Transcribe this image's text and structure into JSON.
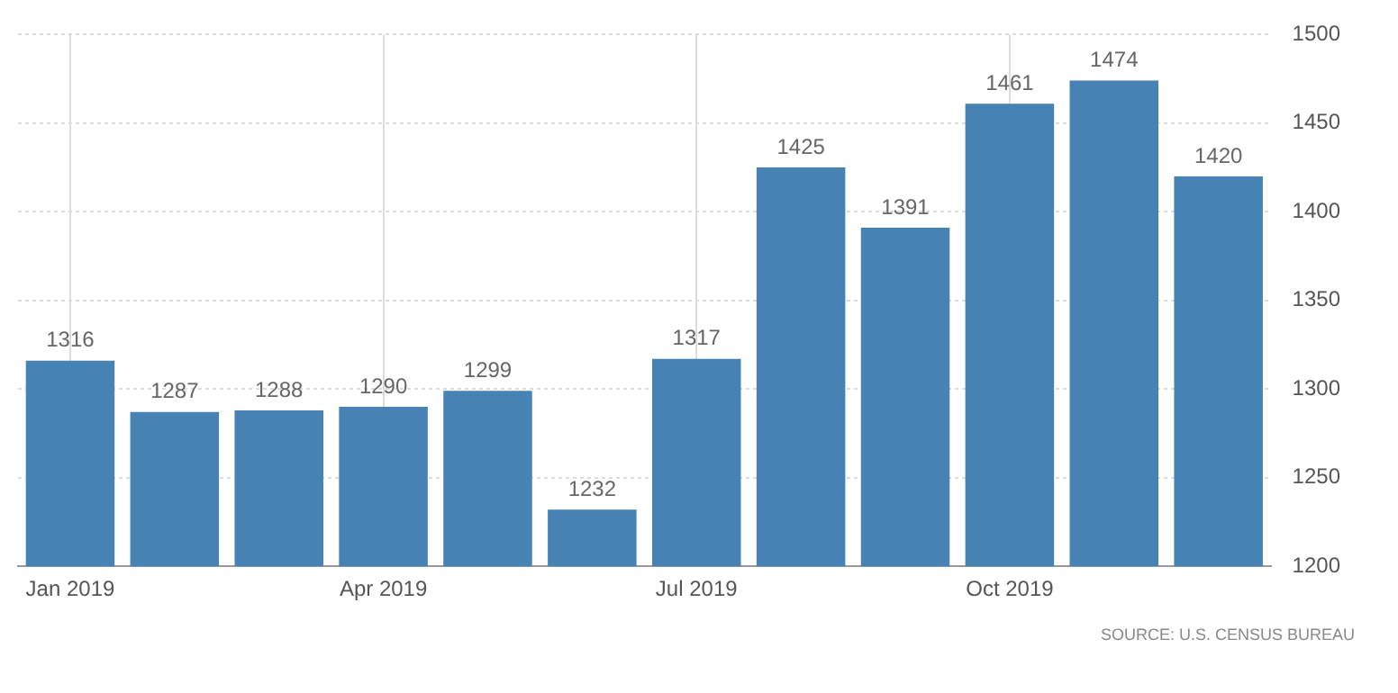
{
  "chart_data": {
    "type": "bar",
    "categories": [
      "Jan 2019",
      null,
      null,
      "Apr 2019",
      null,
      null,
      "Jul 2019",
      null,
      null,
      "Oct 2019",
      null,
      null
    ],
    "values": [
      1316,
      1287,
      1288,
      1290,
      1299,
      1232,
      1317,
      1425,
      1391,
      1461,
      1474,
      1420
    ],
    "color": "#4682b4",
    "ylim": [
      1200,
      1500
    ],
    "yticks": [
      1200,
      1250,
      1300,
      1350,
      1400,
      1450,
      1500
    ],
    "grid": true,
    "data_labels": true,
    "annotations": [
      "SOURCE: U.S. CENSUS BUREAU"
    ]
  }
}
